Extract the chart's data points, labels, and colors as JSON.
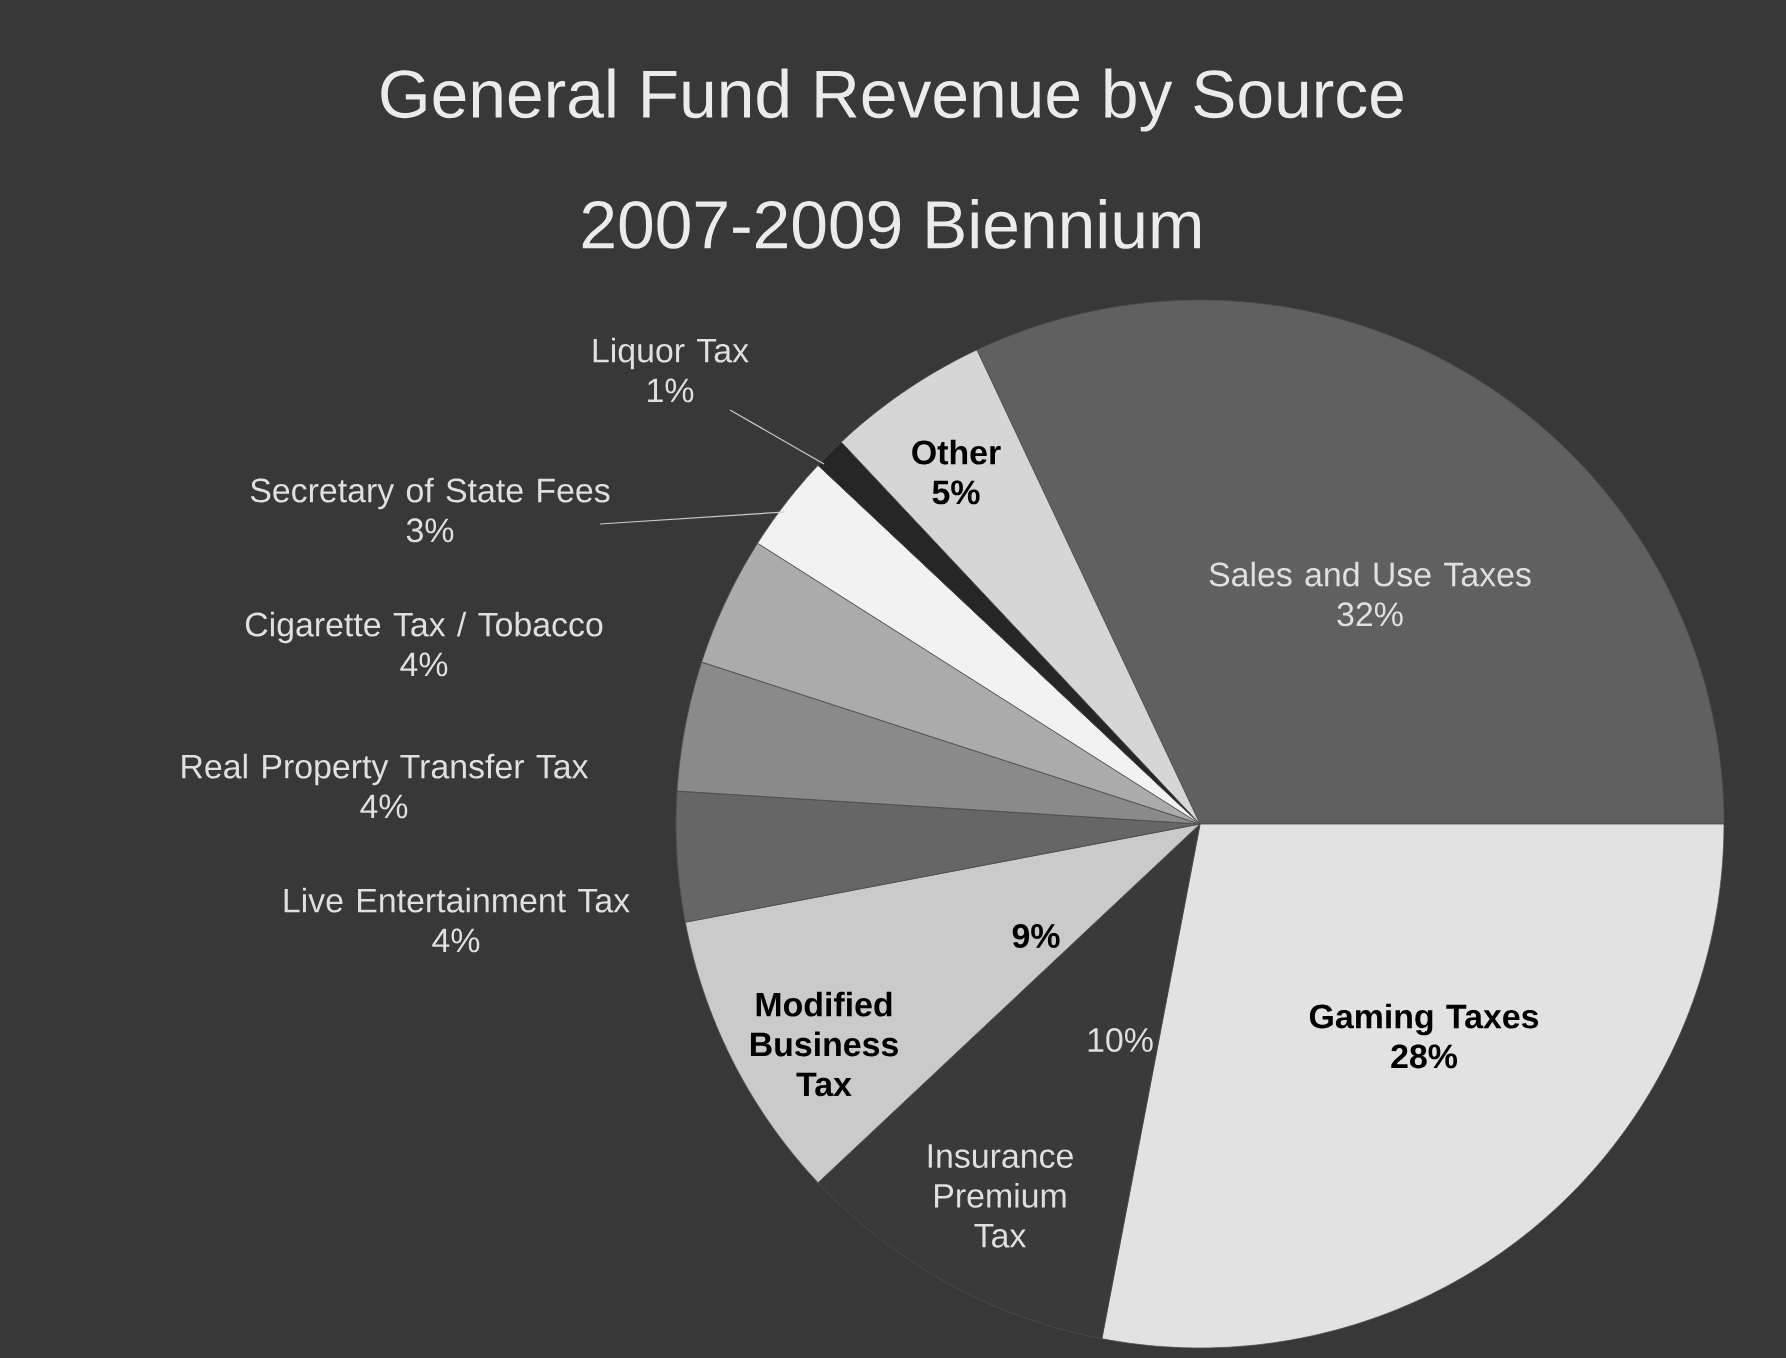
{
  "chart_data": {
    "type": "pie",
    "title": "General Fund Revenue by Source",
    "subtitle": "2007-2009 Biennium",
    "categories": [
      "Sales and Use Taxes",
      "Gaming Taxes",
      "Insurance Premium Tax",
      "Modified Business Tax",
      "Live Entertainment Tax",
      "Real Property Transfer Tax",
      "Cigarette Tax / Tobacco",
      "Secretary of State Fees",
      "Liquor Tax",
      "Other"
    ],
    "values": [
      32,
      28,
      10,
      9,
      4,
      4,
      4,
      3,
      1,
      5
    ],
    "colors": [
      "#606060",
      "#e2e2e2",
      "#3a3a3a",
      "#cacaca",
      "#666666",
      "#8a8a8a",
      "#ababab",
      "#f2f2f2",
      "#262626",
      "#d6d6d6"
    ],
    "value_labels": [
      "32%",
      "28%",
      "10%",
      "9%",
      "4%",
      "4%",
      "4%",
      "3%",
      "1%",
      "5%"
    ]
  }
}
